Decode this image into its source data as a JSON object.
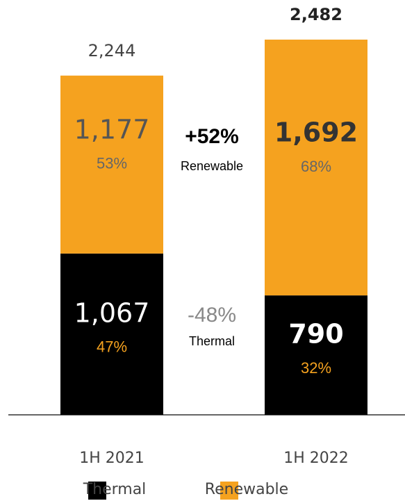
{
  "chart_data": {
    "type": "stacked-bar",
    "categories": [
      "1H 2021",
      "1H 2022"
    ],
    "series": [
      {
        "name": "Thermal",
        "color": "#000000",
        "values": [
          1067,
          790
        ],
        "value_labels": [
          "1,067",
          "790"
        ],
        "shares": [
          47,
          32
        ],
        "share_labels": [
          "47%",
          "32%"
        ]
      },
      {
        "name": "Renewable",
        "color": "#f5a21f",
        "values": [
          1177,
          1692
        ],
        "value_labels": [
          "1,177",
          "1,692"
        ],
        "shares": [
          53,
          68
        ],
        "share_labels": [
          "53%",
          "68%"
        ]
      }
    ],
    "totals": [
      2244,
      2482
    ],
    "total_labels": [
      "2,244",
      "2,482"
    ],
    "annotations": [
      {
        "text": "+52%",
        "label": "Renewable"
      },
      {
        "text": "-48%",
        "label": "Thermal"
      }
    ]
  }
}
